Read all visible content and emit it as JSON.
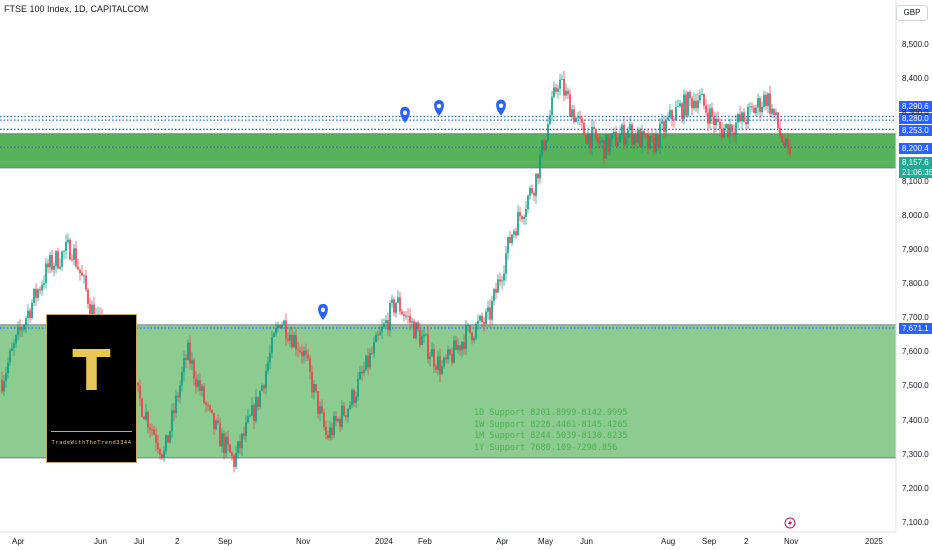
{
  "header": {
    "title": "FTSE 100 Index, 1D, CAPITALCOM",
    "currency": "GBP"
  },
  "price_tags": [
    {
      "value": "8,290.6",
      "color": "#2962ff"
    },
    {
      "value": "8,280.0",
      "color": "#2962ff"
    },
    {
      "value": "8,253.0",
      "color": "#2962ff"
    },
    {
      "value": "8,200.4",
      "color": "#2962ff"
    },
    {
      "value": "8,157.6",
      "color": "#22ab94"
    },
    {
      "value": "21:06:35",
      "color": "#22ab94"
    },
    {
      "value": "7,671.1",
      "color": "#2962ff"
    }
  ],
  "support_text": [
    "1D Support 8201.8999-8142.9995",
    "1W Support 8226.4461-8145.4265",
    "1M Support 8244.5039-8130.8235",
    "1Y Support 7680.109-7290.856"
  ],
  "logo": {
    "letter": "T",
    "text": "TradeWithTheTrend3344"
  },
  "chart_data": {
    "type": "candlestick",
    "title": "FTSE 100 Index, 1D, CAPITALCOM",
    "ylim": [
      7100,
      8600
    ],
    "y_ticks": [
      "8,500.0",
      "8,400.0",
      "8,300.0",
      "8,100.0",
      "8,000.0",
      "7,900.0",
      "7,800.0",
      "7,700.0",
      "7,600.0",
      "7,500.0",
      "7,400.0",
      "7,300.0",
      "7,200.0",
      "7,100.0"
    ],
    "x_ticks": [
      "Apr",
      "Jun",
      "Jul",
      "2",
      "Sep",
      "Nov",
      "2024",
      "Feb",
      "Apr",
      "May",
      "Jun",
      "Aug",
      "Sep",
      "2",
      "Nov",
      "2025"
    ],
    "close_path": [
      [
        "Apr",
        7520
      ],
      [
        "Apr",
        7700
      ],
      [
        "Apr",
        7850
      ],
      [
        "Apr",
        7910
      ],
      [
        "Jun",
        7700
      ],
      [
        "Jun",
        7600
      ],
      [
        "Jul",
        7450
      ],
      [
        "Jul",
        7300
      ],
      [
        "2",
        7600
      ],
      [
        "2",
        7400
      ],
      [
        "2",
        7280
      ],
      [
        "Sep",
        7450
      ],
      [
        "Sep",
        7700
      ],
      [
        "Sep",
        7600
      ],
      [
        "Nov",
        7350
      ],
      [
        "Nov",
        7450
      ],
      [
        "Nov",
        7600
      ],
      [
        "2024",
        7750
      ],
      [
        "2024",
        7650
      ],
      [
        "Feb",
        7550
      ],
      [
        "Feb",
        7650
      ],
      [
        "Apr",
        7700
      ],
      [
        "Apr",
        7950
      ],
      [
        "Apr",
        8100
      ],
      [
        "May",
        8400
      ],
      [
        "May",
        8250
      ],
      [
        "Jun",
        8200
      ],
      [
        "Jun",
        8250
      ],
      [
        "Aug",
        8200
      ],
      [
        "Aug",
        8300
      ],
      [
        "Sep",
        8350
      ],
      [
        "Sep",
        8250
      ],
      [
        "2",
        8280
      ],
      [
        "2",
        8350
      ],
      [
        "Nov",
        8157.6
      ]
    ],
    "levels": [
      8290.6,
      8280.0,
      8253.0,
      8200.4,
      7671.1
    ],
    "zones": [
      {
        "top": 8240,
        "bottom": 8140,
        "color": "#4caf50"
      },
      {
        "top": 7680.109,
        "bottom": 7290.856,
        "color": "#81c784"
      }
    ],
    "last": 8157.6,
    "legend": "none",
    "grid": false
  }
}
